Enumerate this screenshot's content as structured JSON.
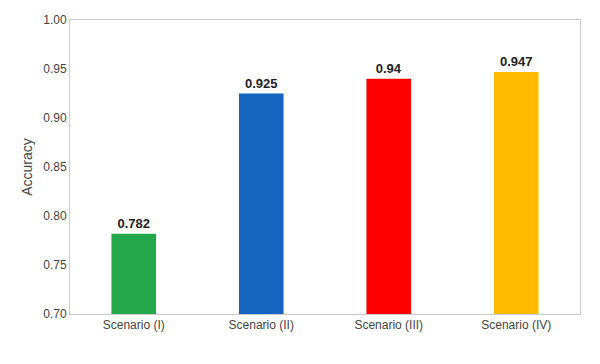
{
  "chart_data": {
    "type": "bar",
    "categories": [
      "Scenario (I)",
      "Scenario (II)",
      "Scenario (III)",
      "Scenario (IV)"
    ],
    "values": [
      0.782,
      0.925,
      0.94,
      0.947
    ],
    "colors": [
      "#22a84a",
      "#1565C0",
      "#ff0000",
      "#ffbb00"
    ],
    "ylabel": "Accuracy",
    "ylim": [
      0.7,
      1.0
    ],
    "yticks": [
      {
        "value": 0.7,
        "label": "0.70"
      },
      0.75,
      {
        "value": 0.8,
        "label": "0.80"
      },
      0.85,
      {
        "value": 0.9,
        "label": "0.90"
      },
      0.95,
      {
        "value": 1.0,
        "label": "1.00"
      }
    ],
    "grid": false,
    "data_labels": true
  }
}
